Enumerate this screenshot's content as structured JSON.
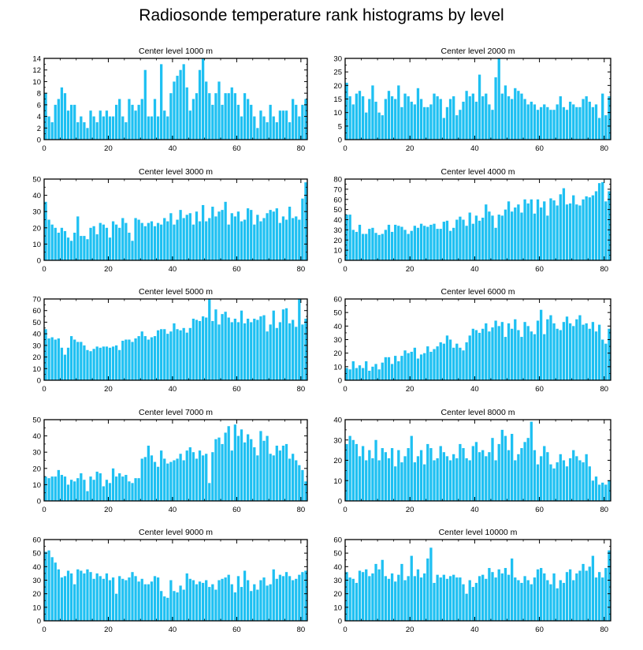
{
  "title": "Radiosonde temperature rank histograms by level",
  "bar_color": "#1ec0f2",
  "chart_data": [
    {
      "type": "bar",
      "title": "Center level 1000 m",
      "xlabel": "",
      "ylabel": "",
      "xlim": [
        0,
        82
      ],
      "ylim": [
        0,
        14
      ],
      "yticks": [
        0,
        2,
        4,
        6,
        8,
        10,
        12,
        14
      ],
      "xticks": [
        0,
        20,
        40,
        60,
        80
      ],
      "values": [
        8,
        4,
        3,
        6,
        7,
        9,
        8,
        5,
        6,
        6,
        3,
        4,
        3,
        2,
        5,
        4,
        3,
        5,
        4,
        5,
        4,
        4,
        6,
        7,
        4,
        3,
        7,
        6,
        5,
        6,
        7,
        12,
        4,
        4,
        7,
        4,
        13,
        5,
        4,
        8,
        10,
        11,
        12,
        13,
        9,
        5,
        7,
        8,
        12,
        14,
        10,
        8,
        6,
        8,
        10,
        6,
        8,
        8,
        9,
        8,
        6,
        4,
        8,
        7,
        6,
        4,
        2,
        5,
        4,
        3,
        6,
        4,
        3,
        5,
        5,
        5,
        3,
        7,
        6,
        4,
        6,
        7
      ]
    },
    {
      "type": "bar",
      "title": "Center level 2000 m",
      "xlabel": "",
      "ylabel": "",
      "xlim": [
        0,
        82
      ],
      "ylim": [
        0,
        30
      ],
      "yticks": [
        0,
        5,
        10,
        15,
        20,
        25,
        30
      ],
      "xticks": [
        0,
        20,
        40,
        60,
        80
      ],
      "values": [
        21,
        16,
        13,
        17,
        18,
        16,
        10,
        15,
        20,
        14,
        10,
        9,
        15,
        18,
        16,
        15,
        20,
        12,
        17,
        16,
        14,
        13,
        19,
        15,
        12,
        12,
        13,
        17,
        16,
        15,
        8,
        12,
        15,
        16,
        9,
        11,
        14,
        18,
        16,
        17,
        14,
        24,
        16,
        17,
        13,
        11,
        23,
        30,
        17,
        20,
        16,
        15,
        19,
        18,
        17,
        15,
        13,
        14,
        13,
        11,
        12,
        13,
        12,
        11,
        11,
        13,
        16,
        12,
        11,
        14,
        13,
        12,
        12,
        15,
        16,
        14,
        12,
        13,
        8,
        17,
        9,
        16
      ]
    },
    {
      "type": "bar",
      "title": "Center level 3000 m",
      "xlabel": "",
      "ylabel": "",
      "xlim": [
        0,
        82
      ],
      "ylim": [
        0,
        50
      ],
      "yticks": [
        0,
        10,
        20,
        30,
        40,
        50
      ],
      "xticks": [
        0,
        20,
        40,
        60,
        80
      ],
      "values": [
        36,
        25,
        22,
        20,
        17,
        20,
        18,
        14,
        12,
        17,
        27,
        15,
        15,
        13,
        20,
        21,
        16,
        23,
        22,
        20,
        14,
        24,
        22,
        20,
        26,
        23,
        17,
        12,
        26,
        25,
        23,
        21,
        23,
        24,
        21,
        23,
        22,
        26,
        24,
        29,
        22,
        25,
        31,
        26,
        28,
        29,
        22,
        30,
        24,
        34,
        24,
        26,
        33,
        27,
        30,
        31,
        36,
        22,
        29,
        27,
        30,
        24,
        25,
        32,
        31,
        22,
        28,
        24,
        26,
        29,
        31,
        30,
        32,
        23,
        27,
        25,
        33,
        26,
        27,
        25,
        38,
        48
      ]
    },
    {
      "type": "bar",
      "title": "Center level 4000 m",
      "xlabel": "",
      "ylabel": "",
      "xlim": [
        0,
        82
      ],
      "ylim": [
        0,
        80
      ],
      "yticks": [
        0,
        10,
        20,
        30,
        40,
        50,
        60,
        70,
        80
      ],
      "xticks": [
        0,
        20,
        40,
        60,
        80
      ],
      "values": [
        45,
        45,
        30,
        28,
        35,
        26,
        26,
        31,
        32,
        27,
        25,
        26,
        30,
        35,
        28,
        35,
        34,
        33,
        30,
        26,
        29,
        34,
        32,
        36,
        34,
        33,
        35,
        36,
        31,
        31,
        38,
        39,
        29,
        32,
        40,
        43,
        40,
        34,
        47,
        36,
        44,
        39,
        42,
        55,
        48,
        44,
        32,
        45,
        44,
        50,
        58,
        48,
        52,
        55,
        47,
        60,
        56,
        60,
        46,
        60,
        52,
        58,
        44,
        61,
        59,
        54,
        65,
        71,
        55,
        56,
        64,
        55,
        54,
        60,
        63,
        62,
        64,
        68,
        76,
        77,
        58,
        68
      ]
    },
    {
      "type": "bar",
      "title": "Center level 5000 m",
      "xlabel": "",
      "ylabel": "",
      "xlim": [
        0,
        82
      ],
      "ylim": [
        0,
        70
      ],
      "yticks": [
        0,
        10,
        20,
        30,
        40,
        50,
        60,
        70
      ],
      "xticks": [
        0,
        20,
        40,
        60,
        80
      ],
      "values": [
        44,
        36,
        37,
        35,
        36,
        28,
        22,
        28,
        38,
        35,
        33,
        33,
        30,
        26,
        25,
        27,
        29,
        28,
        29,
        29,
        28,
        29,
        30,
        26,
        34,
        35,
        35,
        33,
        36,
        38,
        42,
        38,
        35,
        37,
        38,
        43,
        44,
        44,
        40,
        42,
        49,
        44,
        43,
        45,
        41,
        45,
        53,
        52,
        51,
        55,
        54,
        70,
        51,
        61,
        48,
        57,
        59,
        54,
        50,
        53,
        50,
        60,
        49,
        53,
        50,
        53,
        52,
        55,
        56,
        42,
        48,
        60,
        45,
        50,
        61,
        62,
        49,
        52,
        46,
        70,
        48,
        53
      ]
    },
    {
      "type": "bar",
      "title": "Center level 6000 m",
      "xlabel": "",
      "ylabel": "",
      "xlim": [
        0,
        82
      ],
      "ylim": [
        0,
        60
      ],
      "yticks": [
        0,
        10,
        20,
        30,
        40,
        50,
        60
      ],
      "xticks": [
        0,
        20,
        40,
        60,
        80
      ],
      "values": [
        9,
        8,
        14,
        9,
        11,
        9,
        14,
        7,
        10,
        12,
        8,
        13,
        17,
        17,
        12,
        18,
        14,
        18,
        22,
        20,
        21,
        24,
        16,
        19,
        20,
        25,
        21,
        23,
        25,
        28,
        27,
        33,
        30,
        24,
        27,
        24,
        22,
        28,
        33,
        38,
        37,
        35,
        38,
        42,
        36,
        39,
        44,
        40,
        43,
        32,
        42,
        38,
        45,
        37,
        32,
        43,
        40,
        36,
        34,
        44,
        52,
        34,
        45,
        48,
        42,
        38,
        37,
        43,
        47,
        42,
        40,
        45,
        48,
        41,
        42,
        38,
        43,
        36,
        41,
        30,
        27,
        38
      ]
    },
    {
      "type": "bar",
      "title": "Center level 7000 m",
      "xlabel": "",
      "ylabel": "",
      "xlim": [
        0,
        82
      ],
      "ylim": [
        0,
        50
      ],
      "yticks": [
        0,
        10,
        20,
        30,
        40,
        50
      ],
      "xticks": [
        0,
        20,
        40,
        60,
        80
      ],
      "values": [
        15,
        14,
        15,
        15,
        19,
        16,
        15,
        10,
        13,
        12,
        14,
        17,
        13,
        6,
        15,
        13,
        18,
        17,
        9,
        13,
        11,
        20,
        15,
        17,
        15,
        16,
        12,
        11,
        14,
        14,
        26,
        27,
        34,
        28,
        24,
        21,
        31,
        26,
        23,
        24,
        25,
        26,
        29,
        25,
        31,
        33,
        30,
        26,
        31,
        28,
        29,
        11,
        30,
        38,
        39,
        35,
        42,
        46,
        31,
        47,
        40,
        44,
        36,
        41,
        38,
        33,
        28,
        43,
        37,
        40,
        29,
        28,
        34,
        31,
        34,
        35,
        26,
        29,
        25,
        22,
        19,
        12
      ]
    },
    {
      "type": "bar",
      "title": "Center level 8000 m",
      "xlabel": "",
      "ylabel": "",
      "xlim": [
        0,
        82
      ],
      "ylim": [
        0,
        40
      ],
      "yticks": [
        0,
        10,
        20,
        30,
        40
      ],
      "xticks": [
        0,
        20,
        40,
        60,
        80
      ],
      "values": [
        28,
        32,
        30,
        28,
        22,
        27,
        20,
        25,
        21,
        30,
        20,
        26,
        24,
        21,
        26,
        17,
        25,
        19,
        22,
        26,
        32,
        19,
        22,
        25,
        18,
        28,
        26,
        20,
        21,
        27,
        24,
        22,
        20,
        23,
        21,
        28,
        26,
        21,
        20,
        27,
        29,
        24,
        25,
        22,
        24,
        31,
        20,
        28,
        35,
        32,
        25,
        33,
        20,
        23,
        26,
        29,
        31,
        39,
        25,
        18,
        22,
        27,
        24,
        18,
        16,
        19,
        23,
        20,
        17,
        21,
        25,
        22,
        20,
        19,
        23,
        17,
        10,
        12,
        8,
        9,
        8,
        10
      ]
    },
    {
      "type": "bar",
      "title": "Center level 9000 m",
      "xlabel": "",
      "ylabel": "",
      "xlim": [
        0,
        82
      ],
      "ylim": [
        0,
        60
      ],
      "yticks": [
        0,
        10,
        20,
        30,
        40,
        50,
        60
      ],
      "xticks": [
        0,
        20,
        40,
        60,
        80
      ],
      "values": [
        51,
        52,
        47,
        43,
        38,
        32,
        33,
        37,
        35,
        27,
        38,
        37,
        35,
        38,
        36,
        31,
        35,
        33,
        31,
        35,
        30,
        32,
        20,
        33,
        31,
        30,
        32,
        36,
        33,
        29,
        31,
        27,
        27,
        29,
        33,
        32,
        22,
        18,
        17,
        30,
        22,
        21,
        26,
        23,
        35,
        31,
        30,
        27,
        29,
        28,
        30,
        25,
        27,
        23,
        30,
        31,
        32,
        34,
        27,
        21,
        33,
        25,
        37,
        30,
        22,
        27,
        23,
        30,
        32,
        26,
        27,
        38,
        31,
        34,
        33,
        36,
        33,
        30,
        31,
        34,
        36,
        37
      ]
    },
    {
      "type": "bar",
      "title": "Center level 10000 m",
      "xlabel": "",
      "ylabel": "",
      "xlim": [
        0,
        82
      ],
      "ylim": [
        0,
        60
      ],
      "yticks": [
        0,
        10,
        20,
        30,
        40,
        50,
        60
      ],
      "xticks": [
        0,
        20,
        40,
        60,
        80
      ],
      "values": [
        36,
        32,
        31,
        28,
        37,
        36,
        38,
        33,
        35,
        42,
        38,
        45,
        33,
        31,
        35,
        29,
        34,
        42,
        30,
        33,
        48,
        33,
        38,
        32,
        35,
        46,
        54,
        28,
        34,
        32,
        34,
        31,
        33,
        34,
        32,
        32,
        27,
        20,
        30,
        25,
        28,
        33,
        34,
        31,
        39,
        36,
        32,
        38,
        35,
        39,
        34,
        46,
        32,
        30,
        28,
        33,
        30,
        27,
        32,
        38,
        39,
        35,
        30,
        27,
        35,
        24,
        30,
        28,
        36,
        38,
        30,
        35,
        37,
        42,
        37,
        40,
        48,
        32,
        36,
        32,
        39,
        52
      ]
    }
  ]
}
